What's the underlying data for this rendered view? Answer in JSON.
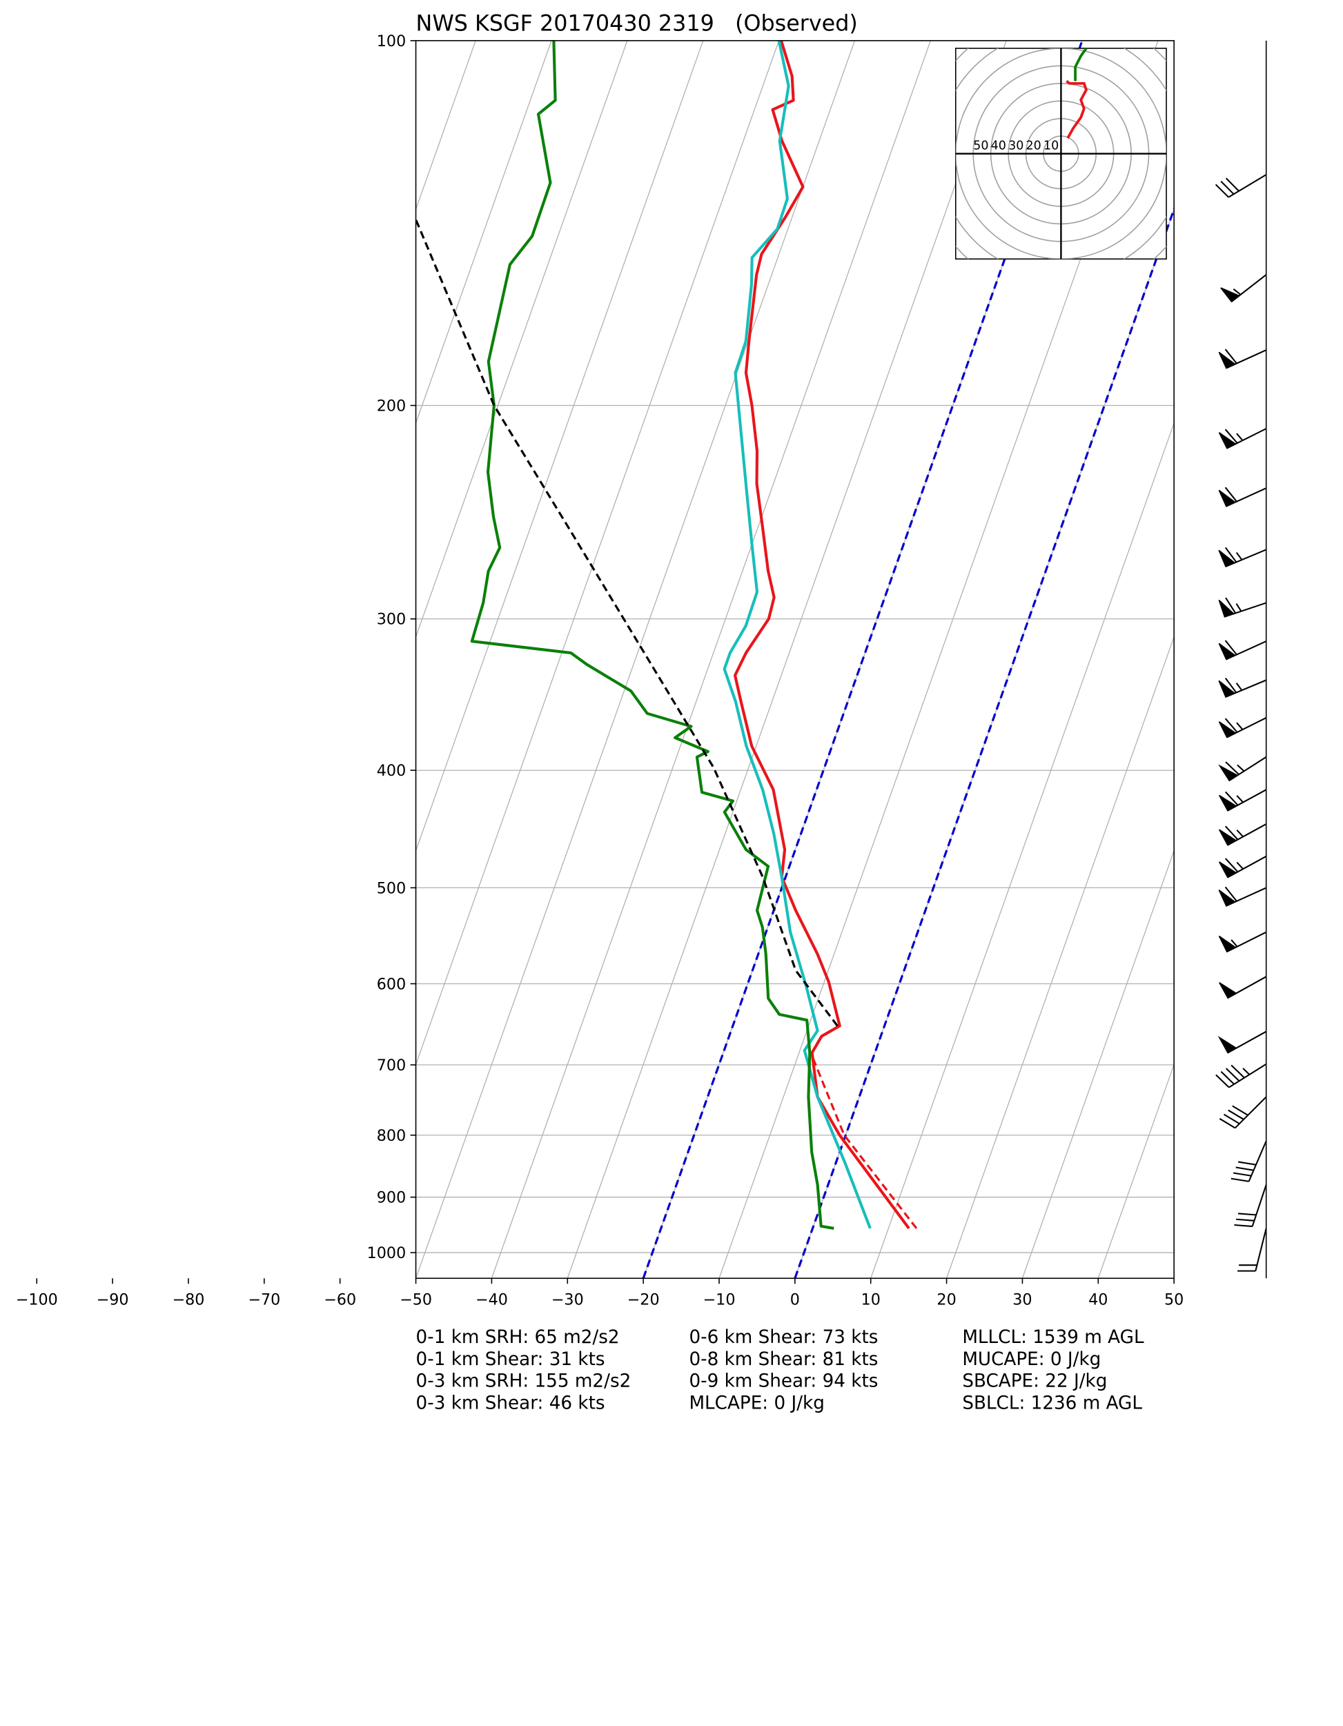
{
  "chart_data": {
    "type": "skewt",
    "title": "NWS KSGF 20170430 2319   (Observed)",
    "xlim": [
      -50,
      50
    ],
    "ylim": [
      1050,
      100
    ],
    "log_y": true,
    "grid": true,
    "xticks": [
      {
        "value": -100,
        "label": "−100"
      },
      {
        "value": -90,
        "label": "−90"
      },
      {
        "value": -80,
        "label": "−80"
      },
      {
        "value": -70,
        "label": "−70"
      },
      {
        "value": -60,
        "label": "−60"
      },
      {
        "value": -50,
        "label": "−50"
      },
      {
        "value": -40,
        "label": "−40"
      },
      {
        "value": -30,
        "label": "−30"
      },
      {
        "value": -20,
        "label": "−20"
      },
      {
        "value": -10,
        "label": "−10"
      },
      0,
      10,
      20,
      30,
      40,
      50
    ],
    "yticks": [
      100,
      200,
      300,
      400,
      500,
      600,
      700,
      800,
      900,
      1000
    ],
    "isotherms": [
      -100,
      -90,
      -80,
      -70,
      -60,
      -50,
      -40,
      -30,
      -20,
      -10,
      0,
      10,
      20,
      30,
      40
    ],
    "isotherm_color": "#b0b0b0",
    "highlight_isotherms": {
      "color": "#0000cc",
      "values": [
        -20,
        0
      ]
    },
    "series": [
      {
        "color": "#e8161b",
        "linestyle": "solid",
        "pressure": [
          955,
          800,
          744,
          684,
          663,
          650,
          598,
          567,
          522,
          490,
          465,
          415,
          382,
          351,
          334,
          320,
          300,
          288,
          274,
          252,
          232,
          218,
          200,
          188,
          177,
          156,
          150,
          140,
          132,
          121,
          114,
          112,
          107,
          100
        ],
        "temperature": [
          12.7,
          -0.8,
          -5.5,
          -8.3,
          -7.8,
          -5.9,
          -9.4,
          -12.2,
          -17.1,
          -20.5,
          -21.4,
          -25.7,
          -30.6,
          -34.1,
          -36.1,
          -35.7,
          -34.3,
          -34.6,
          -36.6,
          -39.4,
          -42.2,
          -43.7,
          -46.5,
          -48.8,
          -49.9,
          -52.0,
          -52.3,
          -50.9,
          -50.0,
          -54.9,
          -57.6,
          -55.3,
          -56.6,
          -59.7
        ]
      },
      {
        "color": "#17bebb",
        "linestyle": "solid",
        "pressure": [
          955,
          843,
          744,
          681,
          656,
          604,
          544,
          490,
          451,
          415,
          382,
          351,
          330,
          320,
          304,
          285,
          262,
          236,
          196,
          188,
          177,
          159,
          151,
          143,
          135,
          121,
          109,
          100
        ],
        "temperature": [
          7.6,
          1.2,
          -5.5,
          -9.4,
          -8.6,
          -12.1,
          -16.8,
          -20.5,
          -23.6,
          -27.1,
          -31.3,
          -34.8,
          -37.8,
          -37.8,
          -37.0,
          -37.1,
          -39.8,
          -43.1,
          -48.9,
          -50.2,
          -50.3,
          -52.2,
          -53.4,
          -51.4,
          -51.5,
          -55.2,
          -56.6,
          -60.0
        ]
      },
      {
        "color": "#0a800a",
        "linestyle": "solid",
        "pressure": [
          955,
          951,
          879,
          826,
          744,
          684,
          643,
          636,
          617,
          567,
          539,
          522,
          480,
          465,
          433,
          424,
          417,
          390,
          386,
          376,
          368,
          359,
          344,
          327,
          320,
          313,
          291,
          274,
          262,
          247,
          227,
          200,
          184,
          153,
          145,
          131,
          115,
          112,
          100
        ],
        "temperature": [
          2.8,
          1.0,
          -1.4,
          -3.7,
          -6.7,
          -8.6,
          -10.5,
          -14.4,
          -16.6,
          -19.0,
          -20.7,
          -22.2,
          -22.8,
          -26.5,
          -31.1,
          -30.5,
          -35.0,
          -37.3,
          -36.1,
          -41.1,
          -39.5,
          -45.9,
          -49.1,
          -56.2,
          -58.8,
          -72.4,
          -72.7,
          -73.5,
          -73.1,
          -75.4,
          -78.2,
          -80.5,
          -83.3,
          -85.0,
          -83.4,
          -83.5,
          -88.3,
          -86.7,
          -89.7
        ]
      },
      {
        "color": "#000000",
        "linestyle": "dashed",
        "pressure": [
          650,
          585,
          490,
          398,
          323,
          254,
          200,
          140
        ],
        "temperature": [
          -6.2,
          -14.3,
          -23.0,
          -34.6,
          -48.5,
          -64.5,
          -80.5,
          -99.7
        ]
      },
      {
        "color": "#e8161b",
        "linestyle": "dashed",
        "pressure": [
          955,
          800,
          690
        ],
        "temperature": [
          13.7,
          -0.2,
          -8.0
        ]
      }
    ],
    "barbs": {
      "pressure": [
        129,
        156,
        180,
        209,
        234,
        263,
        291,
        313,
        337,
        362,
        390,
        415,
        443,
        471,
        500,
        544,
        592,
        657,
        699,
        744,
        809,
        879,
        955
      ],
      "u": [
        25,
        45,
        55,
        60,
        55,
        60,
        60,
        55,
        60,
        60,
        55,
        55,
        55,
        55,
        55,
        50,
        45,
        45,
        40,
        30,
        15,
        10,
        5
      ],
      "v": [
        15,
        35,
        25,
        30,
        25,
        25,
        20,
        25,
        25,
        30,
        35,
        30,
        30,
        30,
        25,
        25,
        25,
        25,
        25,
        30,
        35,
        30,
        20
      ]
    },
    "hodograph": {
      "xlim": [
        -60,
        60
      ],
      "ylim": [
        -60,
        60
      ],
      "rings": [
        10,
        20,
        30,
        40,
        50,
        60,
        70,
        80
      ],
      "ring_labels": [
        50,
        40,
        30,
        20,
        10
      ],
      "ring_color": "#a0a0a0",
      "series": [
        {
          "color": "#e8161b",
          "u": [
            3.8,
            6.9,
            11.3,
            13.1,
            11.3,
            14.4,
            13.1,
            5.0,
            3.1
          ],
          "v": [
            8.8,
            14.4,
            20.6,
            25.6,
            30.6,
            36.3,
            40.0,
            40.0,
            41.3
          ]
        },
        {
          "color": "#0a800a",
          "u": [
            8.1,
            8.1,
            11.3,
            14.4
          ],
          "v": [
            41.3,
            49.4,
            55.6,
            60.0
          ]
        }
      ]
    },
    "annotations": [
      "0-1 km SRH: 65 m2/s2",
      "0-1 km Shear: 31 kts",
      "0-3 km SRH: 155 m2/s2",
      "0-3 km Shear: 46 kts",
      "0-6 km Shear: 73 kts",
      "0-8 km Shear: 81 kts",
      "0-9 km Shear: 94 kts",
      "MLCAPE: 0 J/kg",
      "MLLCL: 1539 m AGL",
      "MUCAPE: 0 J/kg",
      "SBCAPE: 22 J/kg",
      "SBLCL: 1236 m AGL"
    ]
  }
}
